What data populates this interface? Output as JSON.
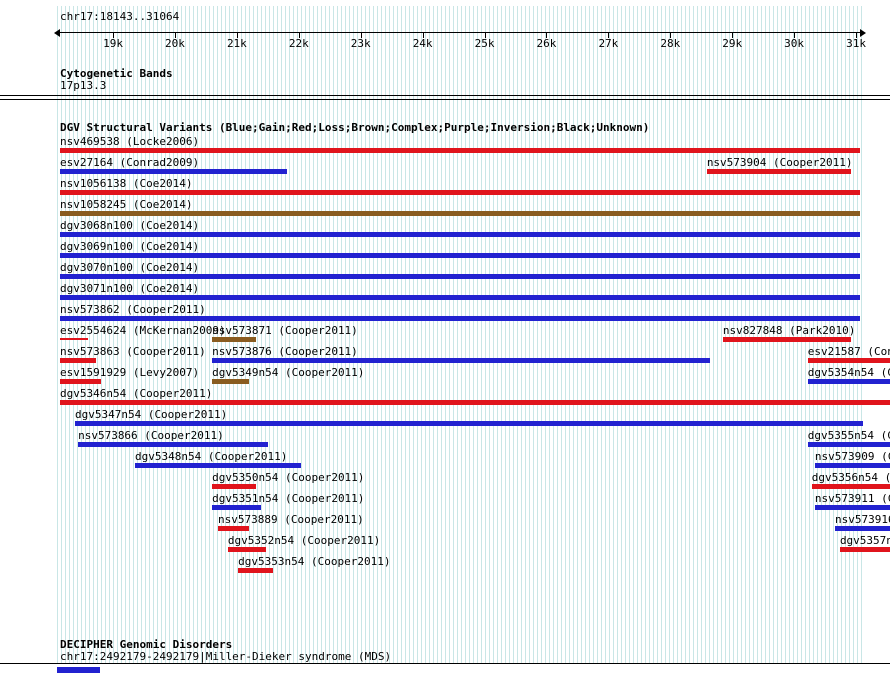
{
  "region": {
    "title": "chr17:18143..31064",
    "start": 18143,
    "end": 31064
  },
  "ruler": {
    "tick_labels": [
      {
        "pos": 19000,
        "label": "19k"
      },
      {
        "pos": 20000,
        "label": "20k"
      },
      {
        "pos": 21000,
        "label": "21k"
      },
      {
        "pos": 22000,
        "label": "22k"
      },
      {
        "pos": 23000,
        "label": "23k"
      },
      {
        "pos": 24000,
        "label": "24k"
      },
      {
        "pos": 25000,
        "label": "25k"
      },
      {
        "pos": 26000,
        "label": "26k"
      },
      {
        "pos": 27000,
        "label": "27k"
      },
      {
        "pos": 28000,
        "label": "28k"
      },
      {
        "pos": 29000,
        "label": "29k"
      },
      {
        "pos": 30000,
        "label": "30k"
      },
      {
        "pos": 31000,
        "label": "31k"
      }
    ]
  },
  "colors": {
    "red": "#e0141c",
    "blue": "#2222d0",
    "brown": "#8a5c20"
  },
  "cytobands": {
    "title": "Cytogenetic Bands",
    "band": "17p13.3"
  },
  "dgv": {
    "title": "DGV Structural Variants (Blue;Gain;Red;Loss;Brown;Complex;Purple;Inversion;Black;Unknown)",
    "rows": [
      [
        {
          "label": "nsv469538 (Locke2006)",
          "color": "red",
          "start": 18143,
          "end": 31064
        }
      ],
      [
        {
          "label": "esv27164 (Conrad2009)",
          "color": "blue",
          "start": 18143,
          "end": 21810
        },
        {
          "label": "nsv573904 (Cooper2011)",
          "color": "red",
          "start": 28590,
          "end": 30920
        }
      ],
      [
        {
          "label": "nsv1056138 (Coe2014)",
          "color": "red",
          "start": 18143,
          "end": 31064
        }
      ],
      [
        {
          "label": "nsv1058245 (Coe2014)",
          "color": "brown",
          "start": 18143,
          "end": 31064
        }
      ],
      [
        {
          "label": "dgv3068n100 (Coe2014)",
          "color": "blue",
          "start": 18143,
          "end": 31064
        }
      ],
      [
        {
          "label": "dgv3069n100 (Coe2014)",
          "color": "blue",
          "start": 18143,
          "end": 31064
        }
      ],
      [
        {
          "label": "dgv3070n100 (Coe2014)",
          "color": "blue",
          "start": 18143,
          "end": 31064
        }
      ],
      [
        {
          "label": "dgv3071n100 (Coe2014)",
          "color": "blue",
          "start": 18143,
          "end": 31064
        }
      ],
      [
        {
          "label": "nsv573862 (Cooper2011)",
          "color": "blue",
          "start": 18143,
          "end": 31064
        }
      ],
      [
        {
          "label": "esv2554624 (McKernan2009)",
          "color": "red",
          "start": 18143,
          "end": 18600,
          "thin": true
        },
        {
          "label": "nsv573871 (Cooper2011)",
          "color": "brown",
          "start": 20600,
          "end": 21310
        },
        {
          "label": "nsv827848 (Park2010)",
          "color": "red",
          "start": 28850,
          "end": 30920
        }
      ],
      [
        {
          "label": "nsv573863 (Cooper2011)",
          "color": "red",
          "start": 18143,
          "end": 18725
        },
        {
          "label": "nsv573876 (Cooper2011)",
          "color": "blue",
          "start": 20600,
          "end": 28640
        },
        {
          "label": "esv21587 (Conr",
          "color": "red",
          "start": 30220,
          "end": 31600
        }
      ],
      [
        {
          "label": "esv1591929 (Levy2007)",
          "color": "red",
          "start": 18143,
          "end": 18805
        },
        {
          "label": "dgv5349n54 (Cooper2011)",
          "color": "brown",
          "start": 20600,
          "end": 21195
        },
        {
          "label": "dgv5354n54 (Co",
          "color": "blue",
          "start": 30220,
          "end": 31600
        }
      ],
      [
        {
          "label": "dgv5346n54 (Cooper2011)",
          "color": "red",
          "start": 18143,
          "end": 31600
        }
      ],
      [
        {
          "label": "dgv5347n54 (Cooper2011)",
          "color": "blue",
          "start": 18385,
          "end": 31110
        }
      ],
      [
        {
          "label": "nsv573866 (Cooper2011)",
          "color": "blue",
          "start": 18435,
          "end": 21500
        },
        {
          "label": "dgv5355n54 (Co",
          "color": "blue",
          "start": 30220,
          "end": 31600
        }
      ],
      [
        {
          "label": "dgv5348n54 (Cooper2011)",
          "color": "blue",
          "start": 19355,
          "end": 22035
        },
        {
          "label": "nsv573909 (Co",
          "color": "blue",
          "start": 30335,
          "end": 31600
        }
      ],
      [
        {
          "label": "dgv5350n54 (Cooper2011)",
          "color": "red",
          "start": 20600,
          "end": 21310
        },
        {
          "label": "dgv5356n54 (C",
          "color": "red",
          "start": 30285,
          "end": 31600
        }
      ],
      [
        {
          "label": "dgv5351n54 (Cooper2011)",
          "color": "blue",
          "start": 20600,
          "end": 21390
        },
        {
          "label": "nsv573911 (Co",
          "color": "blue",
          "start": 30335,
          "end": 31600
        }
      ],
      [
        {
          "label": "nsv573889 (Cooper2011)",
          "color": "red",
          "start": 20695,
          "end": 21195
        },
        {
          "label": "nsv573916",
          "color": "blue",
          "start": 30660,
          "end": 31600
        }
      ],
      [
        {
          "label": "dgv5352n54 (Cooper2011)",
          "color": "red",
          "start": 20855,
          "end": 21470
        },
        {
          "label": "dgv5357n5",
          "color": "red",
          "start": 30740,
          "end": 31600
        }
      ],
      [
        {
          "label": "dgv5353n54 (Cooper2011)",
          "color": "red",
          "start": 21020,
          "end": 21585
        }
      ]
    ]
  },
  "decipher": {
    "title": "DECIPHER Genomic Disorders",
    "entry": "chr17:2492179-2492179|Miller-Dieker syndrome (MDS)",
    "bar": {
      "color": "blue",
      "start": 18100,
      "end": 18790
    }
  }
}
